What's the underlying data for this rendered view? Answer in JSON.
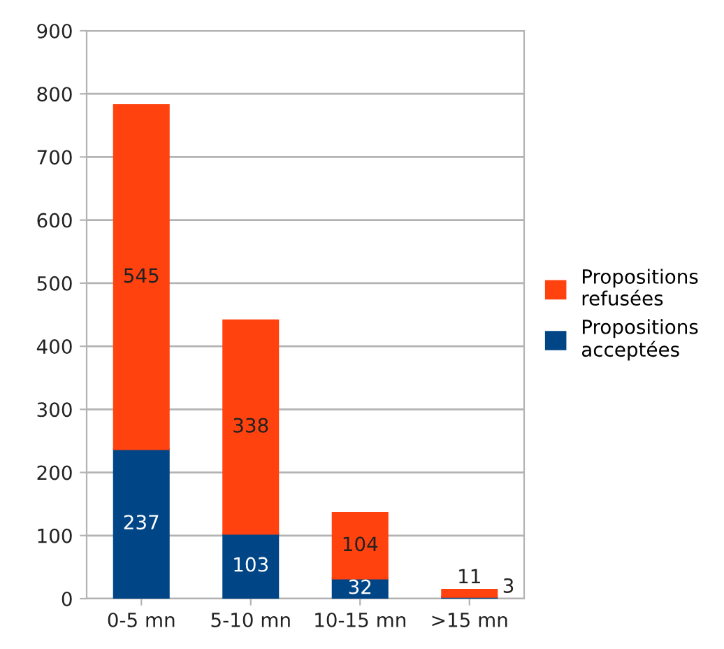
{
  "chart_data": {
    "type": "bar",
    "stacked": true,
    "categories": [
      "0-5 mn",
      "5-10 mn",
      "10-15 mn",
      ">15 mn"
    ],
    "series": [
      {
        "name": "Propositions acceptées",
        "color": "#004586",
        "values": [
          237,
          103,
          32,
          3
        ]
      },
      {
        "name": "Propositions refusées",
        "color": "#ff420e",
        "values": [
          545,
          338,
          104,
          11
        ]
      }
    ],
    "ylim": [
      0,
      900
    ],
    "yticks": [
      0,
      100,
      200,
      300,
      400,
      500,
      600,
      700,
      800,
      900
    ],
    "grid": "y",
    "legend": "right",
    "data_labels": true
  }
}
